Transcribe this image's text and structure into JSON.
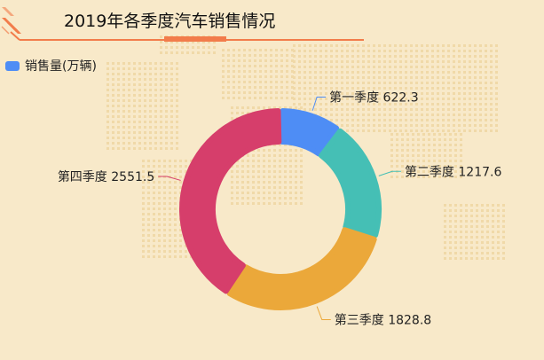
{
  "title": "2019年各季度汽车销售情况",
  "legend": {
    "label": "销售量(万辆)",
    "color": "#4e8df5"
  },
  "colors": {
    "background": "#f8e9c9",
    "map_dots": "#f0d9a8",
    "decoration": "#f27c4b"
  },
  "chart_data": {
    "type": "pie",
    "variant": "donut",
    "title": "2019年各季度汽车销售情况",
    "series": [
      {
        "name": "销售量(万辆)",
        "categories": [
          "第一季度",
          "第二季度",
          "第三季度",
          "第四季度"
        ],
        "values": [
          622.3,
          1217.6,
          1828.8,
          2551.5
        ],
        "colors": [
          "#4e8df5",
          "#45bfb5",
          "#eba83a",
          "#d63e6b"
        ]
      }
    ],
    "legend_position": "top-left",
    "data_labels": true
  }
}
